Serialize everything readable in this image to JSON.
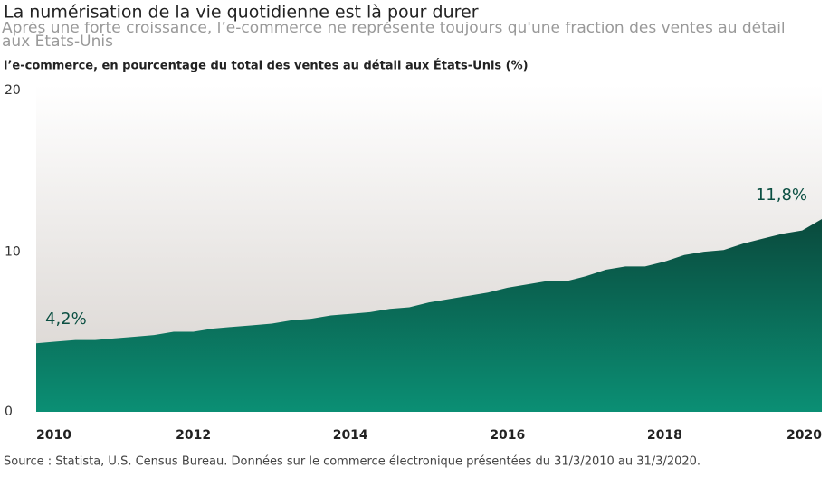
{
  "chart_data": {
    "type": "area",
    "title": "La numérisation de la vie quotidienne est là pour durer",
    "subtitle": "Après une forte croissance, l’e-commerce ne représente toujours qu'une fraction des ventes au détail aux États-Unis",
    "ylabel": "l’e-commerce, en pourcentage du total des ventes au détail aux États-Unis (%)",
    "source": "Source : Statista, U.S. Census Bureau. Données sur le commerce électronique présentées du 31/3/2010 au 31/3/2020.",
    "x": [
      2010,
      2010.25,
      2010.5,
      2010.75,
      2011,
      2011.25,
      2011.5,
      2011.75,
      2012,
      2012.25,
      2012.5,
      2012.75,
      2013,
      2013.25,
      2013.5,
      2013.75,
      2014,
      2014.25,
      2014.5,
      2014.75,
      2015,
      2015.25,
      2015.5,
      2015.75,
      2016,
      2016.25,
      2016.5,
      2016.75,
      2017,
      2017.25,
      2017.5,
      2017.75,
      2018,
      2018.25,
      2018.5,
      2018.75,
      2019,
      2019.25,
      2019.5,
      2019.75,
      2020
    ],
    "values": [
      4.2,
      4.3,
      4.4,
      4.4,
      4.5,
      4.6,
      4.7,
      4.9,
      4.9,
      5.1,
      5.2,
      5.3,
      5.4,
      5.6,
      5.7,
      5.9,
      6.0,
      6.1,
      6.3,
      6.4,
      6.7,
      6.9,
      7.1,
      7.3,
      7.6,
      7.8,
      8.0,
      8.0,
      8.3,
      8.7,
      8.9,
      8.9,
      9.2,
      9.6,
      9.8,
      9.9,
      10.3,
      10.6,
      10.9,
      11.1,
      11.8
    ],
    "value_labels": [
      "4,2%",
      null,
      null,
      null,
      null,
      null,
      null,
      null,
      null,
      null,
      null,
      null,
      null,
      null,
      null,
      null,
      null,
      null,
      null,
      null,
      null,
      null,
      null,
      null,
      null,
      null,
      null,
      null,
      null,
      null,
      null,
      null,
      null,
      null,
      null,
      null,
      null,
      null,
      null,
      null,
      "11,8%"
    ],
    "color": "#0b7a63",
    "xlim": [
      2010,
      2020
    ],
    "xticks": [
      2010,
      2012,
      2014,
      2016,
      2018,
      2020
    ],
    "ylim": [
      0,
      20
    ],
    "yticks": [
      0,
      10,
      20
    ]
  }
}
